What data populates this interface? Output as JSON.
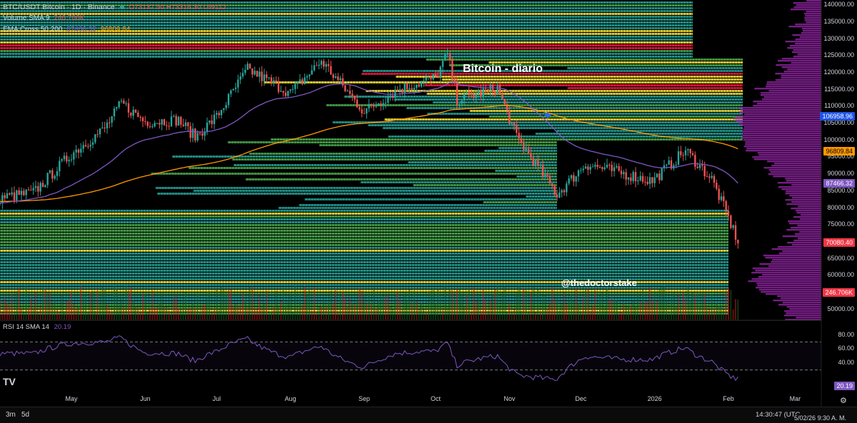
{
  "header": {
    "symbol_title": "BTC/USDT Bitcoin · 1D · Binance",
    "ohlc": {
      "o": "O73137.50",
      "h": "H73316.30",
      "l": "L69112"
    },
    "volume_label": "Volume SMA 9",
    "volume_value": "246.706K",
    "ema_label": "EMA Cross 50 200",
    "ema_fast_value": "87466.32",
    "ema_slow_value": "96809.84"
  },
  "annotations": {
    "title": "Bitcoin - diario",
    "author": "@thedoctorstake"
  },
  "price_tags": {
    "ema_fast_marker": "106958.96",
    "ema_slow": "96809.84",
    "ema_fast": "87466.32",
    "last_price": "70080.40",
    "volume": "246.706K",
    "rsi": "20.19"
  },
  "rsi_legend": {
    "label": "RSI 14 SMA 14",
    "value": "20.19"
  },
  "bottom_bar": {
    "range_3m": "3m",
    "range_5d": "5d",
    "clock": "14:30:47 (UTC",
    "date_time": "5/02/26  9:30 A. M."
  },
  "colors": {
    "up": "#26a69a",
    "down": "#ef5350",
    "ema_fast": "#7e57c2",
    "ema_slow": "#ff9800",
    "rsi": "#7e57c2",
    "teal": "#26a69a",
    "green": "#4caf50",
    "yellow": "#ffeb3b",
    "red": "#ff1744",
    "profile": "#9c27b0",
    "last_tag": "#f23645"
  },
  "chart_data": {
    "type": "candlestick",
    "x_tick_labels": [
      "May",
      "Jun",
      "Jul",
      "Aug",
      "Sep",
      "Oct",
      "Nov",
      "Dec",
      "2026",
      "Feb",
      "Mar"
    ],
    "y_ticks": [
      140000,
      135000,
      130000,
      125000,
      120000,
      115000,
      110000,
      105000,
      100000,
      95000,
      90000,
      85000,
      80000,
      75000,
      70000,
      65000,
      60000,
      55000,
      50000
    ],
    "y_tick_labels": [
      "140000.00",
      "135000.00",
      "130000.00",
      "125000.00",
      "120000.00",
      "115000.00",
      "110000.00",
      "105000.00",
      "100000.00",
      "95000.00",
      "90000.00",
      "85000.00",
      "80000.00",
      "75000.00",
      "70000.00",
      "65000.00",
      "60000.00",
      "55000.00",
      "50000.00"
    ],
    "ylim": [
      47000,
      141500
    ],
    "price_close_path": [
      {
        "x": "Apr 1",
        "y": 83000
      },
      {
        "x": "Apr 15",
        "y": 84500
      },
      {
        "x": "May 1",
        "y": 96000
      },
      {
        "x": "May 15",
        "y": 103500
      },
      {
        "x": "May 22",
        "y": 111000
      },
      {
        "x": "Jun 1",
        "y": 105500
      },
      {
        "x": "Jun 15",
        "y": 106000
      },
      {
        "x": "Jun 22",
        "y": 101000
      },
      {
        "x": "Jul 1",
        "y": 107000
      },
      {
        "x": "Jul 14",
        "y": 121000
      },
      {
        "x": "Aug 1",
        "y": 114000
      },
      {
        "x": "Aug 14",
        "y": 123500
      },
      {
        "x": "Sep 1",
        "y": 108500
      },
      {
        "x": "Sep 15",
        "y": 115000
      },
      {
        "x": "Oct 1",
        "y": 118500
      },
      {
        "x": "Oct 6",
        "y": 125500
      },
      {
        "x": "Oct 10",
        "y": 112000
      },
      {
        "x": "Oct 27",
        "y": 115500
      },
      {
        "x": "Nov 4",
        "y": 101000
      },
      {
        "x": "Nov 21",
        "y": 84000
      },
      {
        "x": "Dec 3",
        "y": 93000
      },
      {
        "x": "Dec 31",
        "y": 88000
      },
      {
        "x": "Jan 14",
        "y": 97000
      },
      {
        "x": "Jan 25",
        "y": 88500
      },
      {
        "x": "Feb 1",
        "y": 77000
      },
      {
        "x": "Feb 5",
        "y": 70080
      }
    ],
    "ema_50": {
      "last": 87466.32
    },
    "ema_200": {
      "last": 96809.84
    },
    "rsi": {
      "ylim": [
        0,
        100
      ],
      "levels": [
        70,
        30
      ],
      "tick_labels": [
        "80.00",
        "60.00",
        "40.00"
      ],
      "last": 20.19
    }
  }
}
